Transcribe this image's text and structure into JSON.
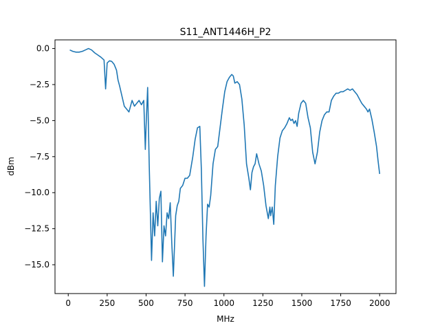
{
  "chart_data": {
    "type": "line",
    "title": "S11_ANT1446H_P2",
    "xlabel": "MHz",
    "ylabel": "dBm",
    "xlim": [
      -85,
      2105
    ],
    "ylim": [
      -17.0,
      0.6
    ],
    "xticks": [
      0,
      250,
      500,
      750,
      1000,
      1250,
      1500,
      1750,
      2000
    ],
    "xtick_labels": [
      "0",
      "250",
      "500",
      "750",
      "1000",
      "1250",
      "1500",
      "1750",
      "2000"
    ],
    "yticks": [
      0.0,
      -2.5,
      -5.0,
      -7.5,
      -10.0,
      -12.5,
      -15.0
    ],
    "ytick_labels": [
      "0.0",
      "−2.5",
      "−5.0",
      "−7.5",
      "−10.0",
      "−12.5",
      "−15.0"
    ],
    "grid": false,
    "series": [
      {
        "color": "#1f77b4",
        "x": [
          10,
          30,
          50,
          70,
          90,
          110,
          130,
          150,
          170,
          190,
          210,
          230,
          240,
          250,
          265,
          280,
          295,
          310,
          320,
          330,
          345,
          360,
          375,
          390,
          410,
          425,
          440,
          455,
          470,
          485,
          495,
          500,
          510,
          520,
          535,
          545,
          555,
          565,
          575,
          585,
          595,
          605,
          615,
          625,
          635,
          645,
          655,
          665,
          675,
          690,
          700,
          710,
          720,
          735,
          750,
          765,
          780,
          800,
          815,
          830,
          845,
          855,
          865,
          875,
          885,
          895,
          905,
          915,
          930,
          945,
          960,
          975,
          990,
          1005,
          1020,
          1035,
          1050,
          1060,
          1070,
          1085,
          1100,
          1115,
          1130,
          1145,
          1160,
          1170,
          1180,
          1190,
          1200,
          1210,
          1225,
          1240,
          1255,
          1270,
          1285,
          1295,
          1300,
          1310,
          1320,
          1330,
          1345,
          1360,
          1375,
          1390,
          1405,
          1420,
          1430,
          1440,
          1450,
          1460,
          1470,
          1480,
          1495,
          1510,
          1525,
          1540,
          1555,
          1570,
          1585,
          1600,
          1615,
          1630,
          1645,
          1660,
          1675,
          1690,
          1705,
          1720,
          1735,
          1750,
          1765,
          1780,
          1795,
          1810,
          1825,
          1840,
          1855,
          1870,
          1885,
          1900,
          1915,
          1925,
          1935,
          1950,
          1965,
          1980,
          1990,
          2000
        ],
        "y": [
          -0.1,
          -0.2,
          -0.25,
          -0.25,
          -0.2,
          -0.1,
          0.0,
          -0.1,
          -0.3,
          -0.45,
          -0.6,
          -0.8,
          -2.8,
          -1.0,
          -0.85,
          -0.9,
          -1.1,
          -1.5,
          -2.2,
          -2.6,
          -3.3,
          -4.0,
          -4.2,
          -4.4,
          -3.6,
          -4.0,
          -3.8,
          -3.6,
          -3.9,
          -3.6,
          -7.0,
          -5.4,
          -2.7,
          -8.0,
          -14.7,
          -11.4,
          -13.0,
          -10.6,
          -12.3,
          -10.4,
          -9.9,
          -14.8,
          -12.3,
          -13.0,
          -11.4,
          -11.8,
          -10.7,
          -13.5,
          -15.8,
          -11.6,
          -10.9,
          -10.6,
          -9.7,
          -9.5,
          -9.0,
          -9.0,
          -8.8,
          -7.5,
          -6.3,
          -5.5,
          -5.4,
          -8.4,
          -13.2,
          -16.5,
          -13.0,
          -10.8,
          -11.0,
          -10.2,
          -8.0,
          -7.0,
          -6.8,
          -5.5,
          -4.2,
          -3.0,
          -2.3,
          -2.0,
          -1.8,
          -1.9,
          -2.4,
          -2.3,
          -2.5,
          -3.5,
          -5.3,
          -8.0,
          -9.0,
          -9.8,
          -8.6,
          -8.2,
          -8.0,
          -7.3,
          -8.0,
          -8.5,
          -9.5,
          -10.9,
          -11.8,
          -11.0,
          -11.6,
          -11.0,
          -12.2,
          -9.5,
          -7.5,
          -6.2,
          -5.7,
          -5.5,
          -5.2,
          -4.8,
          -5.0,
          -4.9,
          -5.2,
          -5.0,
          -5.4,
          -4.5,
          -3.8,
          -3.6,
          -3.8,
          -4.8,
          -5.5,
          -7.2,
          -8.0,
          -7.2,
          -5.8,
          -5.0,
          -4.6,
          -4.4,
          -4.4,
          -3.6,
          -3.3,
          -3.1,
          -3.1,
          -3.0,
          -3.0,
          -2.9,
          -2.8,
          -2.9,
          -2.8,
          -3.0,
          -3.2,
          -3.5,
          -3.8,
          -4.0,
          -4.2,
          -4.4,
          -4.2,
          -4.9,
          -5.8,
          -6.8,
          -7.8,
          -8.7
        ]
      }
    ]
  }
}
